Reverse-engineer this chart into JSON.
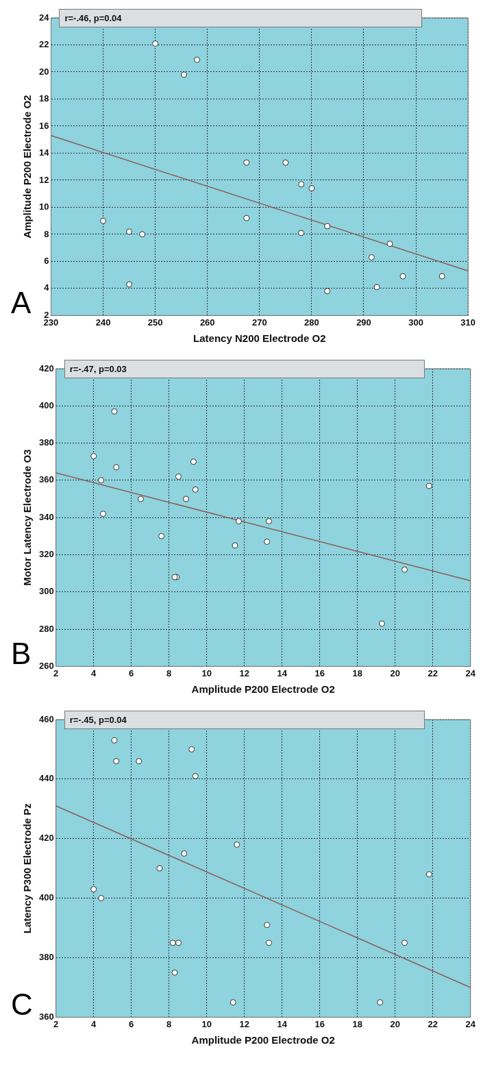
{
  "chart_data": [
    {
      "type": "scatter",
      "xlabel": "Latency N200 Electrode O2",
      "ylabel": "Amplitude P200 Electrode O2",
      "annotations": [
        "r=-.46, p=0.04",
        "A"
      ],
      "xlim": [
        230,
        310
      ],
      "ylim": [
        2,
        24
      ],
      "xticks": [
        230,
        240,
        250,
        260,
        270,
        280,
        290,
        300,
        310
      ],
      "yticks": [
        2,
        4,
        6,
        8,
        10,
        12,
        14,
        16,
        18,
        20,
        22,
        24
      ],
      "grid": true,
      "marker": "circle",
      "series": [
        {
          "type": "scatter",
          "color": "#ffffff",
          "x": [
            250,
            258,
            255.5,
            267.5,
            275,
            278,
            280,
            240,
            245,
            247.5,
            267.5,
            278,
            283,
            295,
            291.5,
            297.5,
            305,
            245,
            283,
            292.5
          ],
          "values": [
            22.1,
            20.9,
            19.8,
            13.3,
            13.3,
            11.7,
            11.4,
            9,
            8.2,
            8,
            9.2,
            8.1,
            8.6,
            7.3,
            6.3,
            4.9,
            4.9,
            4.3,
            3.8,
            4.1
          ]
        },
        {
          "type": "line",
          "marker": "none",
          "color": "#8b5e57",
          "x": [
            230,
            310
          ],
          "values": [
            15.3,
            5.3
          ]
        }
      ]
    },
    {
      "type": "scatter",
      "xlabel": "Amplitude P200 Electrode O2",
      "ylabel": "Motor Latency Electrode O3",
      "annotations": [
        "r=-.47, p=0.03",
        "B"
      ],
      "xlim": [
        2,
        24
      ],
      "ylim": [
        260,
        420
      ],
      "xticks": [
        2,
        4,
        6,
        8,
        10,
        12,
        14,
        16,
        18,
        20,
        22,
        24
      ],
      "yticks": [
        260,
        280,
        300,
        320,
        340,
        360,
        380,
        400,
        420
      ],
      "grid": true,
      "marker": "circle",
      "series": [
        {
          "type": "scatter",
          "color": "#ffffff",
          "x": [
            5.1,
            4,
            5.2,
            4.4,
            4.5,
            6.5,
            7.6,
            8.5,
            9.3,
            9.4,
            8.9,
            8.4,
            8.3,
            11.7,
            13.3,
            11.5,
            13.2,
            21.8,
            20.5,
            19.3
          ],
          "values": [
            397,
            373,
            367,
            360,
            342,
            350,
            330,
            362,
            370,
            355,
            350,
            308,
            308,
            338,
            338,
            325,
            327,
            357,
            312,
            283
          ]
        },
        {
          "type": "line",
          "marker": "none",
          "color": "#8b5e57",
          "x": [
            2,
            24
          ],
          "values": [
            364,
            306
          ]
        }
      ]
    },
    {
      "type": "scatter",
      "xlabel": "Amplitude P200 Electrode O2",
      "ylabel": "Latency P300 Electrode Pz",
      "annotations": [
        "r=-.45, p=0.04",
        "C"
      ],
      "xlim": [
        2,
        24
      ],
      "ylim": [
        360,
        460
      ],
      "xticks": [
        2,
        4,
        6,
        8,
        10,
        12,
        14,
        16,
        18,
        20,
        22,
        24
      ],
      "yticks": [
        360,
        380,
        400,
        420,
        440,
        460
      ],
      "grid": true,
      "marker": "circle",
      "series": [
        {
          "type": "scatter",
          "color": "#ffffff",
          "x": [
            5.1,
            5.2,
            6.4,
            9.2,
            9.4,
            8.8,
            7.5,
            11.6,
            4,
            4.4,
            8.2,
            8.5,
            8.3,
            13.2,
            13.3,
            11.4,
            19.2,
            20.5,
            21.8
          ],
          "values": [
            453,
            446,
            446,
            450,
            441,
            415,
            410,
            418,
            403,
            400,
            385,
            385,
            375,
            391,
            385,
            365,
            365,
            385,
            408
          ]
        },
        {
          "type": "line",
          "marker": "none",
          "color": "#8b5e57",
          "x": [
            2,
            24
          ],
          "values": [
            431,
            370
          ]
        }
      ]
    }
  ]
}
